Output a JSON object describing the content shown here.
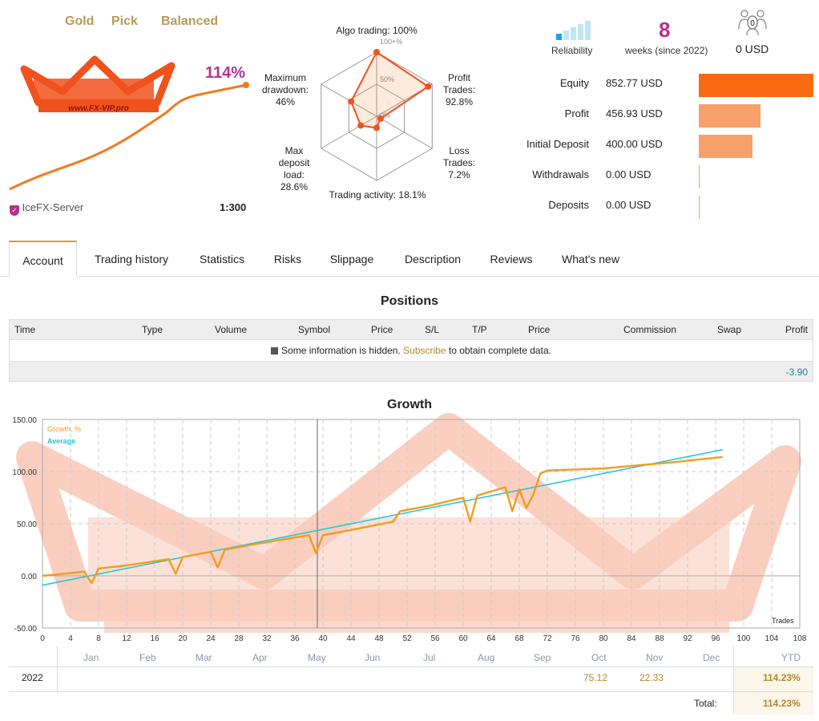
{
  "header": {
    "tags": [
      "Gold",
      "Pick",
      "Balanced"
    ],
    "growth_pct": "114%",
    "server": "IceFX-Server",
    "leverage": "1:300",
    "logo_text": "www.FX-VIP.pro"
  },
  "radar": {
    "axes": [
      {
        "label": "Algo trading: 100%",
        "value": 100
      },
      {
        "label": "Profit Trades: 92.8%",
        "value": 92.8
      },
      {
        "label": "Loss Trades: 7.2%",
        "value": 7.2
      },
      {
        "label": "Trading activity: 18.1%",
        "value": 18.1
      },
      {
        "label": "Max deposit load: 28.6%",
        "value": 28.6
      },
      {
        "label": "Maximum drawdown: 46%",
        "value": 46
      }
    ],
    "labels": {
      "algo": "Algo trading: 100%",
      "profit_l1": "Profit",
      "profit_l2": "Trades:",
      "profit_l3": "92.8%",
      "loss_l1": "Loss",
      "loss_l2": "Trades:",
      "loss_l3": "7.2%",
      "activity": "Trading activity: 18.1%",
      "load_l1": "Max",
      "load_l2": "deposit",
      "load_l3": "load:",
      "load_l4": "28.6%",
      "dd_l1": "Maximum",
      "dd_l2": "drawdown:",
      "dd_l3": "46%"
    },
    "ring_labels": [
      "100+%",
      "50%",
      "0%"
    ]
  },
  "summary": {
    "reliability_label": "Reliability",
    "weeks": "8",
    "weeks_label": "weeks (since 2022)",
    "subscribers": "0",
    "subscribers_value": "0 USD"
  },
  "balances": [
    {
      "label": "Equity",
      "value": "852.77 USD",
      "amount": 852.77
    },
    {
      "label": "Profit",
      "value": "456.93 USD",
      "amount": 456.93
    },
    {
      "label": "Initial Deposit",
      "value": "400.00 USD",
      "amount": 400.0
    },
    {
      "label": "Withdrawals",
      "value": "0.00 USD",
      "amount": 0
    },
    {
      "label": "Deposits",
      "value": "0.00 USD",
      "amount": 0
    }
  ],
  "tabs": [
    "Account",
    "Trading history",
    "Statistics",
    "Risks",
    "Slippage",
    "Description",
    "Reviews",
    "What's new"
  ],
  "positions": {
    "title": "Positions",
    "columns": [
      "Time",
      "Type",
      "Volume",
      "Symbol",
      "Price",
      "S/L",
      "T/P",
      "Price",
      "Commission",
      "Swap",
      "Profit"
    ],
    "info_pre": "Some information is hidden.",
    "info_link": "Subscribe",
    "info_post": "to obtain complete data.",
    "total_profit": "-3.90"
  },
  "growth": {
    "title": "Growth",
    "legend_growth": "Growth, %",
    "legend_average": "Average",
    "x_axis_label": "Trades",
    "months": [
      "Jan",
      "Feb",
      "Mar",
      "Apr",
      "May",
      "Jun",
      "Jul",
      "Aug",
      "Sep",
      "Oct",
      "Nov",
      "Dec"
    ],
    "ytd_label": "YTD",
    "year": "2022",
    "oct_value": "75.12",
    "nov_value": "22.33",
    "ytd_value": "114.23%",
    "total_label": "Total:",
    "total_value": "114.23%"
  },
  "chart_data": {
    "type": "line",
    "xlabel": "Trades",
    "xlim": [
      0,
      108
    ],
    "ylim": [
      -50,
      150
    ],
    "x_ticks": [
      0,
      4,
      8,
      12,
      16,
      20,
      24,
      28,
      32,
      36,
      40,
      44,
      48,
      52,
      56,
      60,
      64,
      68,
      72,
      76,
      80,
      84,
      88,
      92,
      96,
      100,
      104,
      108
    ],
    "y_ticks": [
      -50,
      0,
      50,
      100,
      150
    ],
    "series": [
      {
        "name": "Growth, %",
        "color": "#f29c1f",
        "x": [
          0,
          6,
          7,
          8,
          12,
          18,
          19,
          20,
          24,
          25,
          26,
          30,
          38,
          39,
          40,
          44,
          50,
          51,
          55,
          60,
          61,
          62,
          66,
          67,
          68,
          69,
          70,
          71,
          72,
          80,
          90,
          97
        ],
        "y": [
          0,
          4,
          -7,
          7,
          10,
          16,
          2,
          18,
          23,
          8,
          25,
          30,
          39,
          22,
          39,
          44,
          52,
          62,
          67,
          75,
          52,
          77,
          85,
          62,
          83,
          65,
          78,
          98,
          101,
          103,
          109,
          114
        ]
      },
      {
        "name": "Average",
        "color": "#25c9d6",
        "x": [
          0,
          97
        ],
        "y": [
          -9,
          121
        ]
      }
    ]
  }
}
